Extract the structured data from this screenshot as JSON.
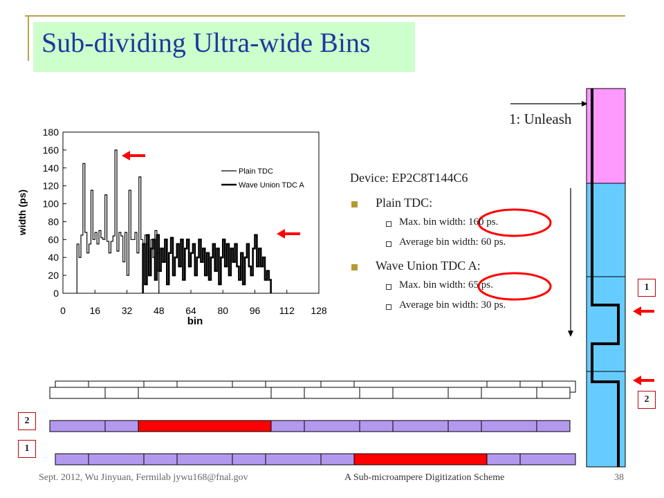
{
  "slide": {
    "title": "Sub-dividing Ultra-wide Bins",
    "unleash_label": "1: Unleash",
    "device_line": "Device: EP2C8T144C6",
    "bullets": [
      {
        "label": "Plain TDC:",
        "items": [
          "Max. bin width: 160 ps.",
          "Average bin width: 60 ps."
        ]
      },
      {
        "label": "Wave Union TDC A:",
        "items": [
          "Max. bin width: 65 ps.",
          "Average bin width: 30 ps."
        ]
      }
    ],
    "box_labels": {
      "top_right": "1",
      "mid_right": "2",
      "left_upper": "2",
      "left_lower": "1"
    },
    "footer": {
      "left": "Sept. 2012, Wu Jinyuan, Fermilab jywu168@fnal.gov",
      "center": "A Sub-microampere Digitization Scheme",
      "page": "38"
    },
    "colors": {
      "title_bg": "#ccffcc",
      "title_text": "#1c3a9e",
      "accent_red": "#ff0000",
      "pink": "#ff99ff",
      "cyan": "#66ccff",
      "violet": "#b399ee",
      "gold_rule": "#b8a14b"
    }
  },
  "chart_data": {
    "type": "line",
    "title": "",
    "xlabel": "bin",
    "ylabel": "width (ps)",
    "xlim": [
      0,
      128
    ],
    "ylim": [
      0,
      180
    ],
    "xticks": [
      0,
      16,
      32,
      48,
      64,
      80,
      96,
      112,
      128
    ],
    "yticks": [
      0,
      20,
      40,
      60,
      80,
      100,
      120,
      140,
      160,
      180
    ],
    "legend_position": "right",
    "series": [
      {
        "name": "Plain TDC",
        "style": "thin",
        "x": [
          7,
          8,
          9,
          10,
          11,
          12,
          13,
          14,
          15,
          16,
          17,
          18,
          19,
          20,
          21,
          22,
          23,
          24,
          25,
          26,
          27,
          28,
          29,
          30,
          31,
          32,
          33,
          34,
          35,
          36,
          37,
          38,
          39,
          40,
          41,
          42,
          43,
          44,
          45,
          46,
          47
        ],
        "y": [
          55,
          40,
          65,
          145,
          68,
          45,
          55,
          115,
          60,
          68,
          55,
          70,
          62,
          60,
          110,
          58,
          45,
          58,
          64,
          160,
          47,
          68,
          64,
          35,
          68,
          20,
          115,
          60,
          60,
          68,
          45,
          130,
          60,
          55,
          65,
          55,
          35,
          60,
          40,
          70,
          45
        ]
      },
      {
        "name": "Wave Union TDC A",
        "style": "thick",
        "x": [
          40,
          41,
          42,
          43,
          44,
          45,
          46,
          47,
          48,
          49,
          50,
          51,
          52,
          53,
          54,
          55,
          56,
          57,
          58,
          59,
          60,
          61,
          62,
          63,
          64,
          65,
          66,
          67,
          68,
          69,
          70,
          71,
          72,
          73,
          74,
          75,
          76,
          77,
          78,
          79,
          80,
          81,
          82,
          83,
          84,
          85,
          86,
          87,
          88,
          89,
          90,
          91,
          92,
          93,
          94,
          95,
          96,
          97,
          98,
          99,
          100,
          101,
          102,
          103
        ],
        "y": [
          55,
          10,
          65,
          20,
          50,
          60,
          15,
          65,
          25,
          50,
          35,
          60,
          10,
          45,
          62,
          20,
          40,
          55,
          30,
          60,
          15,
          50,
          60,
          30,
          45,
          55,
          20,
          40,
          60,
          35,
          50,
          20,
          45,
          15,
          40,
          55,
          25,
          50,
          10,
          40,
          60,
          30,
          55,
          20,
          50,
          35,
          55,
          30,
          15,
          45,
          10,
          40,
          55,
          30,
          20,
          50,
          65,
          30,
          50,
          30,
          40,
          15,
          25,
          15
        ]
      }
    ]
  }
}
